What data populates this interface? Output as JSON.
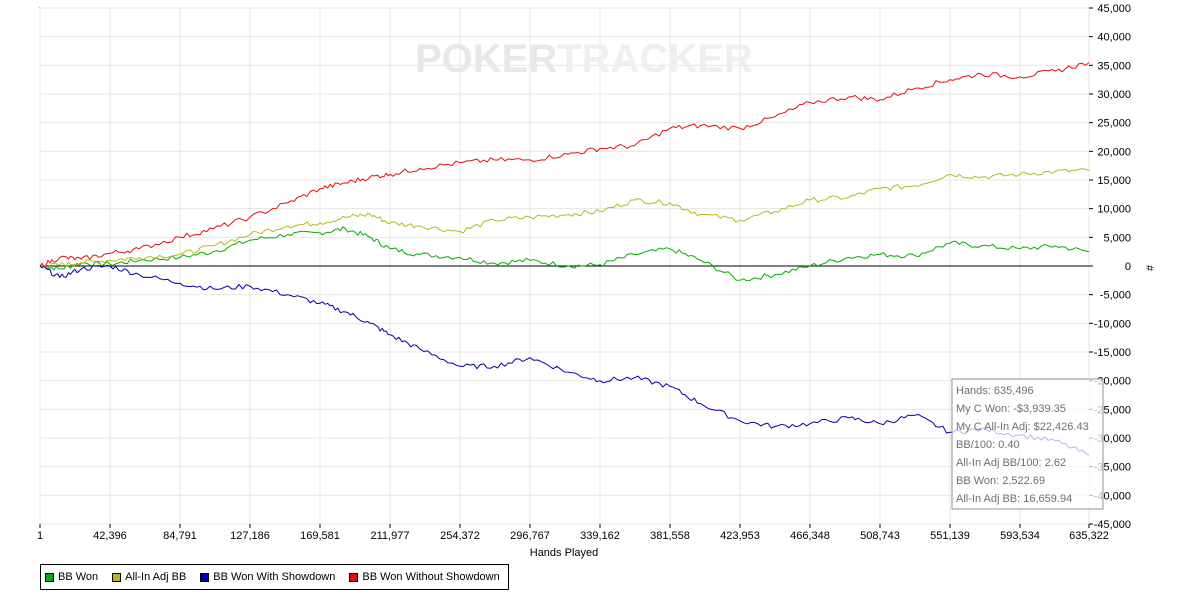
{
  "watermark": {
    "part1": "POKER",
    "part2": "TRACKER"
  },
  "chart_data": {
    "type": "line",
    "xlabel": "Hands Played",
    "ylabel": "#",
    "x_ticks": [
      "1",
      "42,396",
      "84,791",
      "127,186",
      "169,581",
      "211,977",
      "254,372",
      "296,767",
      "339,162",
      "381,558",
      "423,953",
      "466,348",
      "508,743",
      "551,139",
      "593,534",
      "635,322"
    ],
    "y_ticks": [
      "45,000",
      "40,000",
      "35,000",
      "30,000",
      "25,000",
      "20,000",
      "15,000",
      "10,000",
      "5,000",
      "0",
      "-5,000",
      "-10,000",
      "-15,000",
      "-20,000",
      "-25,000",
      "-30,000",
      "-35,000",
      "-40,000",
      "-45,000"
    ],
    "xlim": [
      1,
      635322
    ],
    "ylim": [
      -45000,
      45000
    ],
    "grid": true,
    "legend_position": "bottom-left",
    "x": [
      1,
      12000,
      25000,
      42396,
      60000,
      84791,
      105000,
      127186,
      150000,
      169581,
      185000,
      200000,
      211977,
      230000,
      254372,
      275000,
      296767,
      320000,
      339162,
      360000,
      381558,
      400000,
      423953,
      445000,
      466348,
      490000,
      508743,
      530000,
      551139,
      570000,
      593534,
      615000,
      635322
    ],
    "series": [
      {
        "name": "BB Won",
        "color": "#00b000",
        "values": [
          0,
          -500,
          500,
          300,
          1000,
          1500,
          2500,
          4500,
          5500,
          5800,
          6500,
          5000,
          3000,
          2000,
          1500,
          500,
          1000,
          0,
          200,
          2000,
          3000,
          1000,
          -2500,
          -1500,
          0,
          1500,
          2000,
          1800,
          4000,
          3500,
          3000,
          3500,
          2500
        ]
      },
      {
        "name": "All-In Adj BB",
        "color": "#b8b818",
        "values": [
          0,
          200,
          600,
          1000,
          1500,
          2000,
          3500,
          5500,
          7000,
          7500,
          8500,
          9000,
          7500,
          7000,
          6000,
          8000,
          8500,
          9000,
          9500,
          11500,
          11000,
          9000,
          8000,
          9500,
          11500,
          12000,
          13500,
          14000,
          16000,
          15500,
          16000,
          16500,
          16660
        ]
      },
      {
        "name": "BB Won With Showdown",
        "color": "#0000b0",
        "values": [
          0,
          -2000,
          -500,
          0,
          -1500,
          -3000,
          -4000,
          -3500,
          -5000,
          -6500,
          -8000,
          -10000,
          -12000,
          -14500,
          -17500,
          -17500,
          -16000,
          -18500,
          -20000,
          -19500,
          -21000,
          -24000,
          -27000,
          -28000,
          -27500,
          -26500,
          -27500,
          -26000,
          -29000,
          -28500,
          -29500,
          -30500,
          -33000
        ]
      },
      {
        "name": "BB Won Without Showdown",
        "color": "#e01010",
        "values": [
          0,
          1500,
          1200,
          2200,
          3000,
          5000,
          6500,
          8500,
          11000,
          13500,
          14500,
          15500,
          16000,
          17000,
          18000,
          18500,
          18500,
          19500,
          20500,
          21000,
          24000,
          24500,
          24000,
          26000,
          28500,
          29500,
          29000,
          31000,
          32500,
          33500,
          33000,
          34000,
          35500
        ]
      }
    ]
  },
  "stats": {
    "hands": "Hands: 635,496",
    "my_c_won": "My C Won: -$3,939.35",
    "my_c_allin_adj": "My C All-In Adj: $22,426.43",
    "bb_100": "BB/100: 0.40",
    "allin_adj_bb_100": "All-In Adj BB/100: 2.62",
    "bb_won": "BB Won: 2,522.69",
    "allin_adj_bb": "All-In Adj BB: 16,659.94"
  },
  "legend": [
    {
      "label": "BB Won",
      "color": "#00b000"
    },
    {
      "label": "All-In Adj BB",
      "color": "#b8b818"
    },
    {
      "label": "BB Won With Showdown",
      "color": "#0000b0"
    },
    {
      "label": "BB Won Without Showdown",
      "color": "#e01010"
    }
  ]
}
